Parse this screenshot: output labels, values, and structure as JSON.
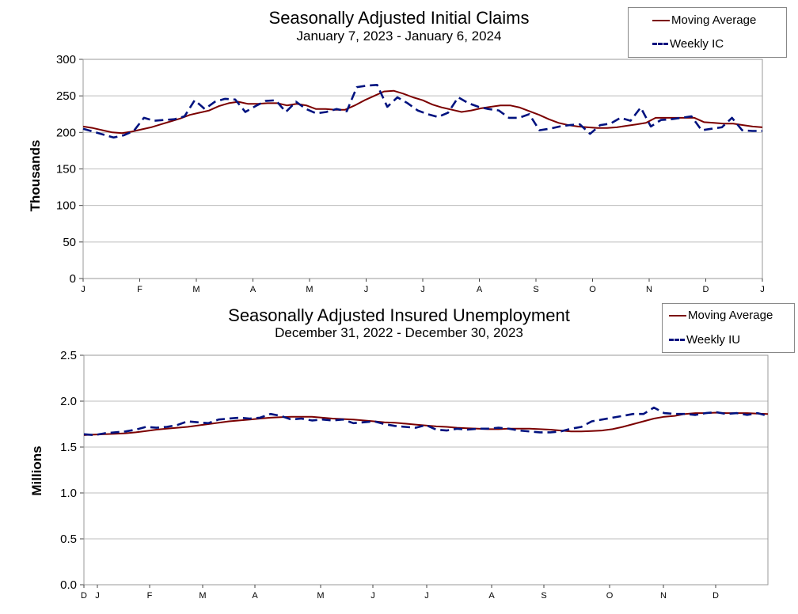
{
  "chart_data": [
    {
      "type": "line",
      "title": "Seasonally Adjusted Initial Claims",
      "subtitle": "January 7, 2023 - January 6, 2024",
      "ylabel": "Thousands",
      "ylim": [
        0,
        300
      ],
      "y_ticks": [
        "0",
        "50",
        "100",
        "150",
        "200",
        "250",
        "300"
      ],
      "x_ticks": [
        "J",
        "F",
        "M",
        "A",
        "M",
        "J",
        "J",
        "A",
        "S",
        "O",
        "N",
        "D",
        "J"
      ],
      "grid": true,
      "legend_placement": "top-right",
      "series": [
        {
          "name": "Moving Average",
          "color": "#7b0000",
          "style": "solid",
          "values": [
            208,
            206,
            203,
            200,
            199,
            201,
            204,
            207,
            211,
            215,
            219,
            224,
            227,
            230,
            236,
            240,
            242,
            239,
            239,
            240,
            240,
            237,
            239,
            237,
            232,
            232,
            231,
            231,
            237,
            244,
            250,
            256,
            257,
            253,
            248,
            244,
            238,
            234,
            231,
            228,
            230,
            233,
            235,
            237,
            237,
            234,
            229,
            224,
            218,
            213,
            210,
            208,
            207,
            206,
            206,
            207,
            209,
            211,
            213,
            220,
            220,
            220,
            220,
            220,
            214,
            213,
            212,
            212,
            210,
            208,
            207
          ]
        },
        {
          "name": "Weekly IC",
          "color": "#00127f",
          "style": "dashed",
          "values": [
            205,
            201,
            197,
            193,
            196,
            202,
            220,
            216,
            217,
            218,
            222,
            244,
            232,
            242,
            246,
            245,
            228,
            236,
            243,
            244,
            228,
            242,
            232,
            226,
            228,
            232,
            229,
            262,
            264,
            265,
            235,
            248,
            240,
            230,
            225,
            221,
            227,
            248,
            240,
            235,
            232,
            230,
            220,
            220,
            225,
            203,
            205,
            208,
            210,
            211,
            198,
            210,
            212,
            220,
            216,
            234,
            208,
            217,
            218,
            220,
            222,
            203,
            205,
            207,
            220,
            203,
            202,
            202
          ]
        }
      ]
    },
    {
      "type": "line",
      "title": "Seasonally Adjusted Insured Unemployment",
      "subtitle": "December 31, 2022 - December 30, 2023",
      "ylabel": "Millions",
      "ylim": [
        0.0,
        2.5
      ],
      "y_ticks": [
        "0.0",
        "0.5",
        "1.0",
        "1.5",
        "2.0",
        "2.5"
      ],
      "x_ticks": [
        "D",
        "J",
        "F",
        "M",
        "A",
        "M",
        "J",
        "J",
        "A",
        "S",
        "O",
        "N",
        "D"
      ],
      "grid": true,
      "legend_placement": "top-right",
      "series": [
        {
          "name": "Moving Average",
          "color": "#7b0000",
          "style": "solid",
          "values": [
            1.63,
            1.635,
            1.64,
            1.645,
            1.65,
            1.66,
            1.675,
            1.69,
            1.7,
            1.71,
            1.72,
            1.735,
            1.75,
            1.765,
            1.78,
            1.79,
            1.8,
            1.81,
            1.82,
            1.825,
            1.83,
            1.83,
            1.83,
            1.82,
            1.81,
            1.805,
            1.8,
            1.79,
            1.78,
            1.77,
            1.765,
            1.755,
            1.745,
            1.735,
            1.725,
            1.72,
            1.71,
            1.705,
            1.7,
            1.695,
            1.695,
            1.7,
            1.7,
            1.7,
            1.695,
            1.69,
            1.68,
            1.67,
            1.67,
            1.675,
            1.68,
            1.695,
            1.72,
            1.75,
            1.78,
            1.81,
            1.83,
            1.84,
            1.86,
            1.87,
            1.87,
            1.875,
            1.87,
            1.87,
            1.87,
            1.865,
            1.86
          ]
        },
        {
          "name": "Weekly IU",
          "color": "#00127f",
          "style": "dashed",
          "values": [
            1.64,
            1.63,
            1.65,
            1.66,
            1.67,
            1.69,
            1.72,
            1.71,
            1.72,
            1.74,
            1.78,
            1.77,
            1.76,
            1.8,
            1.81,
            1.82,
            1.81,
            1.82,
            1.86,
            1.84,
            1.8,
            1.81,
            1.79,
            1.8,
            1.79,
            1.8,
            1.76,
            1.77,
            1.78,
            1.75,
            1.73,
            1.72,
            1.71,
            1.74,
            1.69,
            1.68,
            1.7,
            1.69,
            1.7,
            1.7,
            1.71,
            1.7,
            1.68,
            1.67,
            1.66,
            1.66,
            1.67,
            1.7,
            1.72,
            1.78,
            1.8,
            1.82,
            1.84,
            1.86,
            1.86,
            1.93,
            1.87,
            1.86,
            1.86,
            1.85,
            1.87,
            1.88,
            1.86,
            1.87,
            1.85,
            1.87,
            1.84
          ]
        }
      ]
    }
  ]
}
